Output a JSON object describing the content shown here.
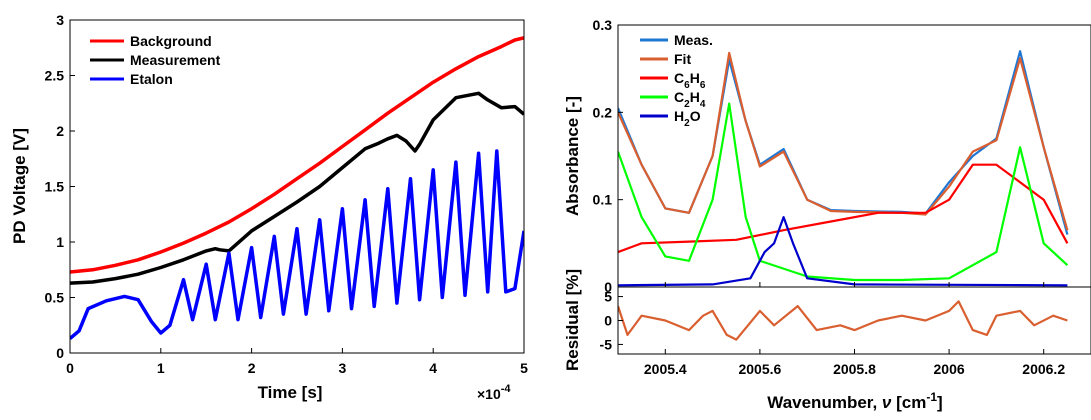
{
  "chart_data": [
    {
      "type": "line",
      "xlabel": "Time [s]",
      "ylabel": "PD Voltage [V]",
      "x_multiplier": "×10",
      "x_multiplier_exp": "-4",
      "xlim": [
        0,
        5
      ],
      "ylim": [
        0,
        3
      ],
      "xticks": [
        "0",
        "1",
        "2",
        "3",
        "4",
        "5"
      ],
      "yticks": [
        "0",
        "0.5",
        "1",
        "1.5",
        "2",
        "2.5",
        "3"
      ],
      "legend_position": "top-left",
      "series": [
        {
          "name": "Background",
          "color": "#ff0000",
          "points": [
            [
              0,
              0.73
            ],
            [
              0.25,
              0.75
            ],
            [
              0.5,
              0.79
            ],
            [
              0.75,
              0.84
            ],
            [
              1,
              0.91
            ],
            [
              1.25,
              0.99
            ],
            [
              1.5,
              1.08
            ],
            [
              1.75,
              1.18
            ],
            [
              2,
              1.3
            ],
            [
              2.25,
              1.43
            ],
            [
              2.5,
              1.57
            ],
            [
              2.75,
              1.71
            ],
            [
              3,
              1.86
            ],
            [
              3.25,
              2.01
            ],
            [
              3.5,
              2.16
            ],
            [
              3.75,
              2.3
            ],
            [
              4,
              2.44
            ],
            [
              4.25,
              2.56
            ],
            [
              4.5,
              2.67
            ],
            [
              4.75,
              2.76
            ],
            [
              4.9,
              2.82
            ],
            [
              5,
              2.84
            ]
          ]
        },
        {
          "name": "Measurement",
          "color": "#000000",
          "points": [
            [
              0,
              0.63
            ],
            [
              0.25,
              0.64
            ],
            [
              0.5,
              0.67
            ],
            [
              0.75,
              0.71
            ],
            [
              1,
              0.77
            ],
            [
              1.25,
              0.84
            ],
            [
              1.5,
              0.92
            ],
            [
              1.6,
              0.94
            ],
            [
              1.65,
              0.93
            ],
            [
              1.75,
              0.92
            ],
            [
              2,
              1.1
            ],
            [
              2.25,
              1.23
            ],
            [
              2.5,
              1.36
            ],
            [
              2.75,
              1.5
            ],
            [
              3,
              1.67
            ],
            [
              3.25,
              1.84
            ],
            [
              3.4,
              1.89
            ],
            [
              3.5,
              1.93
            ],
            [
              3.6,
              1.96
            ],
            [
              3.7,
              1.91
            ],
            [
              3.8,
              1.82
            ],
            [
              3.85,
              1.88
            ],
            [
              4,
              2.1
            ],
            [
              4.25,
              2.3
            ],
            [
              4.5,
              2.34
            ],
            [
              4.6,
              2.28
            ],
            [
              4.75,
              2.21
            ],
            [
              4.9,
              2.22
            ],
            [
              5,
              2.15
            ]
          ]
        },
        {
          "name": "Etalon",
          "color": "#0000ff",
          "points": [
            [
              0,
              0.13
            ],
            [
              0.1,
              0.2
            ],
            [
              0.2,
              0.4
            ],
            [
              0.4,
              0.47
            ],
            [
              0.6,
              0.51
            ],
            [
              0.75,
              0.48
            ],
            [
              0.9,
              0.28
            ],
            [
              1,
              0.18
            ],
            [
              1.1,
              0.25
            ],
            [
              1.25,
              0.66
            ],
            [
              1.35,
              0.3
            ],
            [
              1.5,
              0.8
            ],
            [
              1.6,
              0.3
            ],
            [
              1.75,
              0.9
            ],
            [
              1.85,
              0.3
            ],
            [
              2,
              0.95
            ],
            [
              2.1,
              0.32
            ],
            [
              2.25,
              1.05
            ],
            [
              2.35,
              0.35
            ],
            [
              2.5,
              1.12
            ],
            [
              2.6,
              0.35
            ],
            [
              2.75,
              1.2
            ],
            [
              2.85,
              0.38
            ],
            [
              3,
              1.3
            ],
            [
              3.1,
              0.4
            ],
            [
              3.25,
              1.38
            ],
            [
              3.35,
              0.42
            ],
            [
              3.5,
              1.48
            ],
            [
              3.6,
              0.45
            ],
            [
              3.75,
              1.57
            ],
            [
              3.85,
              0.48
            ],
            [
              4,
              1.65
            ],
            [
              4.1,
              0.5
            ],
            [
              4.25,
              1.72
            ],
            [
              4.35,
              0.52
            ],
            [
              4.5,
              1.8
            ],
            [
              4.6,
              0.55
            ],
            [
              4.7,
              1.82
            ],
            [
              4.8,
              0.55
            ],
            [
              4.9,
              0.58
            ],
            [
              5,
              1.1
            ]
          ]
        }
      ]
    },
    {
      "type": "line",
      "ylabel": "Absorbance [-]",
      "xlim": [
        2005.3,
        2006.3
      ],
      "ylim": [
        0,
        0.3
      ],
      "yticks": [
        "0",
        "0.1",
        "0.2",
        "0.3"
      ],
      "legend_position": "top-left",
      "series": [
        {
          "name": "Meas.",
          "color": "#1f77d4",
          "points": [
            [
              2005.3,
              0.205
            ],
            [
              2005.35,
              0.14
            ],
            [
              2005.4,
              0.09
            ],
            [
              2005.45,
              0.085
            ],
            [
              2005.5,
              0.15
            ],
            [
              2005.535,
              0.26
            ],
            [
              2005.57,
              0.19
            ],
            [
              2005.6,
              0.14
            ],
            [
              2005.65,
              0.158
            ],
            [
              2005.7,
              0.1
            ],
            [
              2005.75,
              0.088
            ],
            [
              2005.8,
              0.087
            ],
            [
              2005.9,
              0.086
            ],
            [
              2005.95,
              0.084
            ],
            [
              2006,
              0.12
            ],
            [
              2006.05,
              0.15
            ],
            [
              2006.1,
              0.17
            ],
            [
              2006.15,
              0.27
            ],
            [
              2006.2,
              0.16
            ],
            [
              2006.25,
              0.06
            ]
          ]
        },
        {
          "name": "Fit",
          "color": "#d95f30",
          "points": [
            [
              2005.3,
              0.2
            ],
            [
              2005.35,
              0.14
            ],
            [
              2005.4,
              0.09
            ],
            [
              2005.45,
              0.085
            ],
            [
              2005.5,
              0.15
            ],
            [
              2005.535,
              0.268
            ],
            [
              2005.57,
              0.19
            ],
            [
              2005.6,
              0.138
            ],
            [
              2005.65,
              0.155
            ],
            [
              2005.7,
              0.1
            ],
            [
              2005.75,
              0.087
            ],
            [
              2005.8,
              0.086
            ],
            [
              2005.9,
              0.085
            ],
            [
              2005.95,
              0.083
            ],
            [
              2006,
              0.115
            ],
            [
              2006.05,
              0.155
            ],
            [
              2006.1,
              0.168
            ],
            [
              2006.15,
              0.262
            ],
            [
              2006.2,
              0.16
            ],
            [
              2006.25,
              0.065
            ]
          ]
        },
        {
          "name": "C6H6",
          "label_html": "C<tspan dy='5' font-size='10'>6</tspan><tspan dy='-5'>H</tspan><tspan dy='5' font-size='10'>6</tspan>",
          "color": "#ff0000",
          "points": [
            [
              2005.3,
              0.04
            ],
            [
              2005.35,
              0.05
            ],
            [
              2005.45,
              0.052
            ],
            [
              2005.55,
              0.054
            ],
            [
              2005.65,
              0.065
            ],
            [
              2005.75,
              0.075
            ],
            [
              2005.85,
              0.085
            ],
            [
              2005.95,
              0.085
            ],
            [
              2006.0,
              0.1
            ],
            [
              2006.05,
              0.14
            ],
            [
              2006.1,
              0.14
            ],
            [
              2006.2,
              0.1
            ],
            [
              2006.25,
              0.05
            ]
          ]
        },
        {
          "name": "C2H4",
          "color": "#00ff00",
          "points": [
            [
              2005.3,
              0.155
            ],
            [
              2005.35,
              0.08
            ],
            [
              2005.4,
              0.035
            ],
            [
              2005.45,
              0.03
            ],
            [
              2005.5,
              0.1
            ],
            [
              2005.535,
              0.21
            ],
            [
              2005.57,
              0.08
            ],
            [
              2005.6,
              0.03
            ],
            [
              2005.7,
              0.012
            ],
            [
              2005.8,
              0.008
            ],
            [
              2005.9,
              0.008
            ],
            [
              2006.0,
              0.01
            ],
            [
              2006.1,
              0.04
            ],
            [
              2006.15,
              0.16
            ],
            [
              2006.2,
              0.05
            ],
            [
              2006.25,
              0.025
            ]
          ]
        },
        {
          "name": "H2O",
          "color": "#0000cc",
          "points": [
            [
              2005.3,
              0.002
            ],
            [
              2005.5,
              0.003
            ],
            [
              2005.58,
              0.01
            ],
            [
              2005.61,
              0.04
            ],
            [
              2005.63,
              0.05
            ],
            [
              2005.65,
              0.08
            ],
            [
              2005.67,
              0.05
            ],
            [
              2005.7,
              0.01
            ],
            [
              2005.8,
              0.003
            ],
            [
              2006.25,
              0.002
            ]
          ]
        }
      ]
    },
    {
      "type": "line",
      "xlabel": "Wavenumber,",
      "xlabel_symbol": "ν",
      "xlabel_unit": "[cm",
      "xlabel_unit_exp": "-1",
      "xlabel_unit_close": "]",
      "ylabel": "Residual [%]",
      "xlim": [
        2005.3,
        2006.3
      ],
      "ylim": [
        -7,
        7
      ],
      "xticks": [
        "2005.4",
        "2005.6",
        "2005.8",
        "2006",
        "2006.2"
      ],
      "yticks": [
        "-5",
        "0",
        "5"
      ],
      "series": [
        {
          "color": "#d95f30",
          "points": [
            [
              2005.3,
              3
            ],
            [
              2005.32,
              -3
            ],
            [
              2005.35,
              1
            ],
            [
              2005.4,
              0
            ],
            [
              2005.45,
              -2
            ],
            [
              2005.48,
              1
            ],
            [
              2005.5,
              2
            ],
            [
              2005.53,
              -3
            ],
            [
              2005.55,
              -4
            ],
            [
              2005.6,
              2
            ],
            [
              2005.63,
              -1
            ],
            [
              2005.68,
              3
            ],
            [
              2005.72,
              -2
            ],
            [
              2005.77,
              -1
            ],
            [
              2005.8,
              -2
            ],
            [
              2005.85,
              0
            ],
            [
              2005.9,
              1
            ],
            [
              2005.95,
              0
            ],
            [
              2006.0,
              2
            ],
            [
              2006.02,
              4
            ],
            [
              2006.05,
              -2
            ],
            [
              2006.08,
              -3
            ],
            [
              2006.1,
              1
            ],
            [
              2006.15,
              2
            ],
            [
              2006.18,
              -1
            ],
            [
              2006.22,
              1
            ],
            [
              2006.25,
              0
            ]
          ]
        }
      ]
    }
  ]
}
